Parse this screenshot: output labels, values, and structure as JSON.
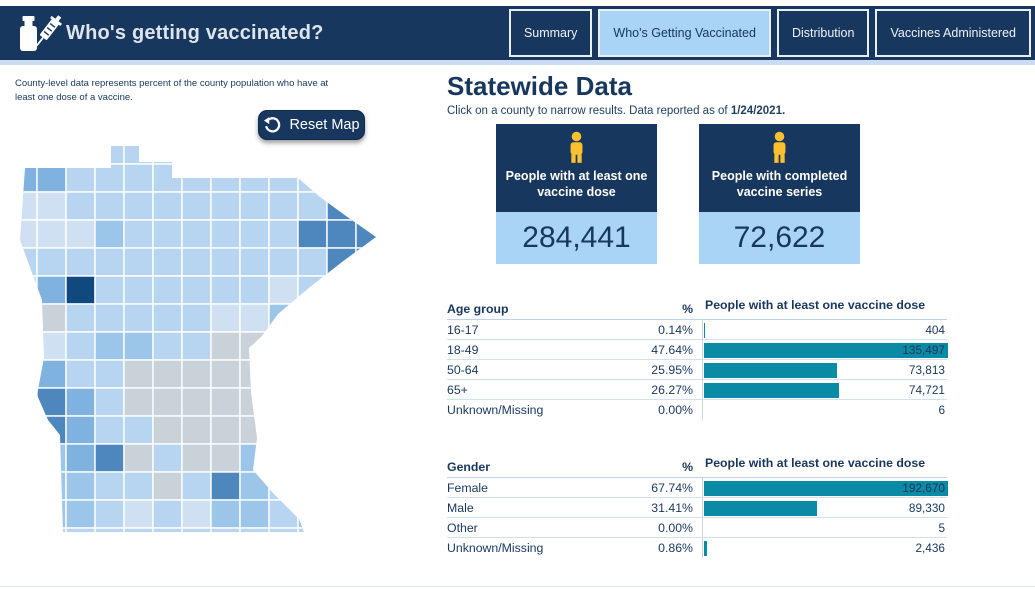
{
  "header": {
    "title": "Who's getting vaccinated?",
    "tabs": [
      {
        "label": "Summary",
        "active": false
      },
      {
        "label": "Who's Getting Vaccinated",
        "active": true
      },
      {
        "label": "Distribution",
        "active": false
      },
      {
        "label": "Vaccines Administered",
        "active": false
      }
    ]
  },
  "map_panel": {
    "note": "County-level data represents percent of the county population who have at least one dose of a vaccine.",
    "reset_button_label": "Reset Map"
  },
  "main": {
    "title": "Statewide Data",
    "subtitle_prefix": "Click on a county to narrow results. Data reported as of ",
    "report_date": "1/24/2021.",
    "cards": [
      {
        "label": "People with at least one vaccine dose",
        "value": "284,441"
      },
      {
        "label": "People with completed vaccine series",
        "value": "72,622"
      }
    ]
  },
  "chart_data": [
    {
      "type": "bar",
      "title": "Age group",
      "pct_header": "%",
      "value_header": "People with at least one vaccine dose",
      "xmax": 135497,
      "rows": [
        {
          "label": "16-17",
          "pct": "0.14%",
          "value": 404,
          "value_label": "404"
        },
        {
          "label": "18-49",
          "pct": "47.64%",
          "value": 135497,
          "value_label": "135,497"
        },
        {
          "label": "50-64",
          "pct": "25.95%",
          "value": 73813,
          "value_label": "73,813"
        },
        {
          "label": "65+",
          "pct": "26.27%",
          "value": 74721,
          "value_label": "74,721"
        },
        {
          "label": "Unknown/Missing",
          "pct": "0.00%",
          "value": 6,
          "value_label": "6"
        }
      ]
    },
    {
      "type": "bar",
      "title": "Gender",
      "pct_header": "%",
      "value_header": "People with at least one vaccine dose",
      "xmax": 192670,
      "rows": [
        {
          "label": "Female",
          "pct": "67.74%",
          "value": 192670,
          "value_label": "192,670"
        },
        {
          "label": "Male",
          "pct": "31.41%",
          "value": 89330,
          "value_label": "89,330"
        },
        {
          "label": "Other",
          "pct": "0.00%",
          "value": 5,
          "value_label": "5"
        },
        {
          "label": "Unknown/Missing",
          "pct": "0.86%",
          "value": 2436,
          "value_label": "2,436"
        }
      ]
    }
  ],
  "colors": {
    "navy": "#17375e",
    "light_blue": "#a9d4f5",
    "pale_strip": "#cbdcf2",
    "teal": "#0b8aa5",
    "gold": "#fcbf2d",
    "row_line": "#cfe0ef",
    "axis_line": "#cfd4d9"
  },
  "map": {
    "palette": {
      "L": "#b7d5f0",
      "P": "#cfe0f3",
      "G": "#c9d1d9",
      "A": "#9cc5ea",
      "M": "#7fb2de",
      "D": "#4d87be",
      "N": "#10497e"
    },
    "grid": [
      "LLLLLLLLLLLLL",
      "MMLLLLLLLLLLL",
      "PPLLLLLLLLLDL",
      "PPPALLLLLLDDD",
      "LLLLLLLLLLLDD",
      "PMNLLLLLLPLLL",
      "LGLLLLLPPALLL",
      "LPLAALLGGALLL",
      "LMLLGGGGGALLL",
      "LDMLGGGGGALLL",
      "LDMLLGGGGALLL",
      "LAMDGLGGALALL",
      "GAALLGLDALLLL",
      "LAALPLPAALALL",
      "LLLLLLLLLLLLL"
    ]
  }
}
